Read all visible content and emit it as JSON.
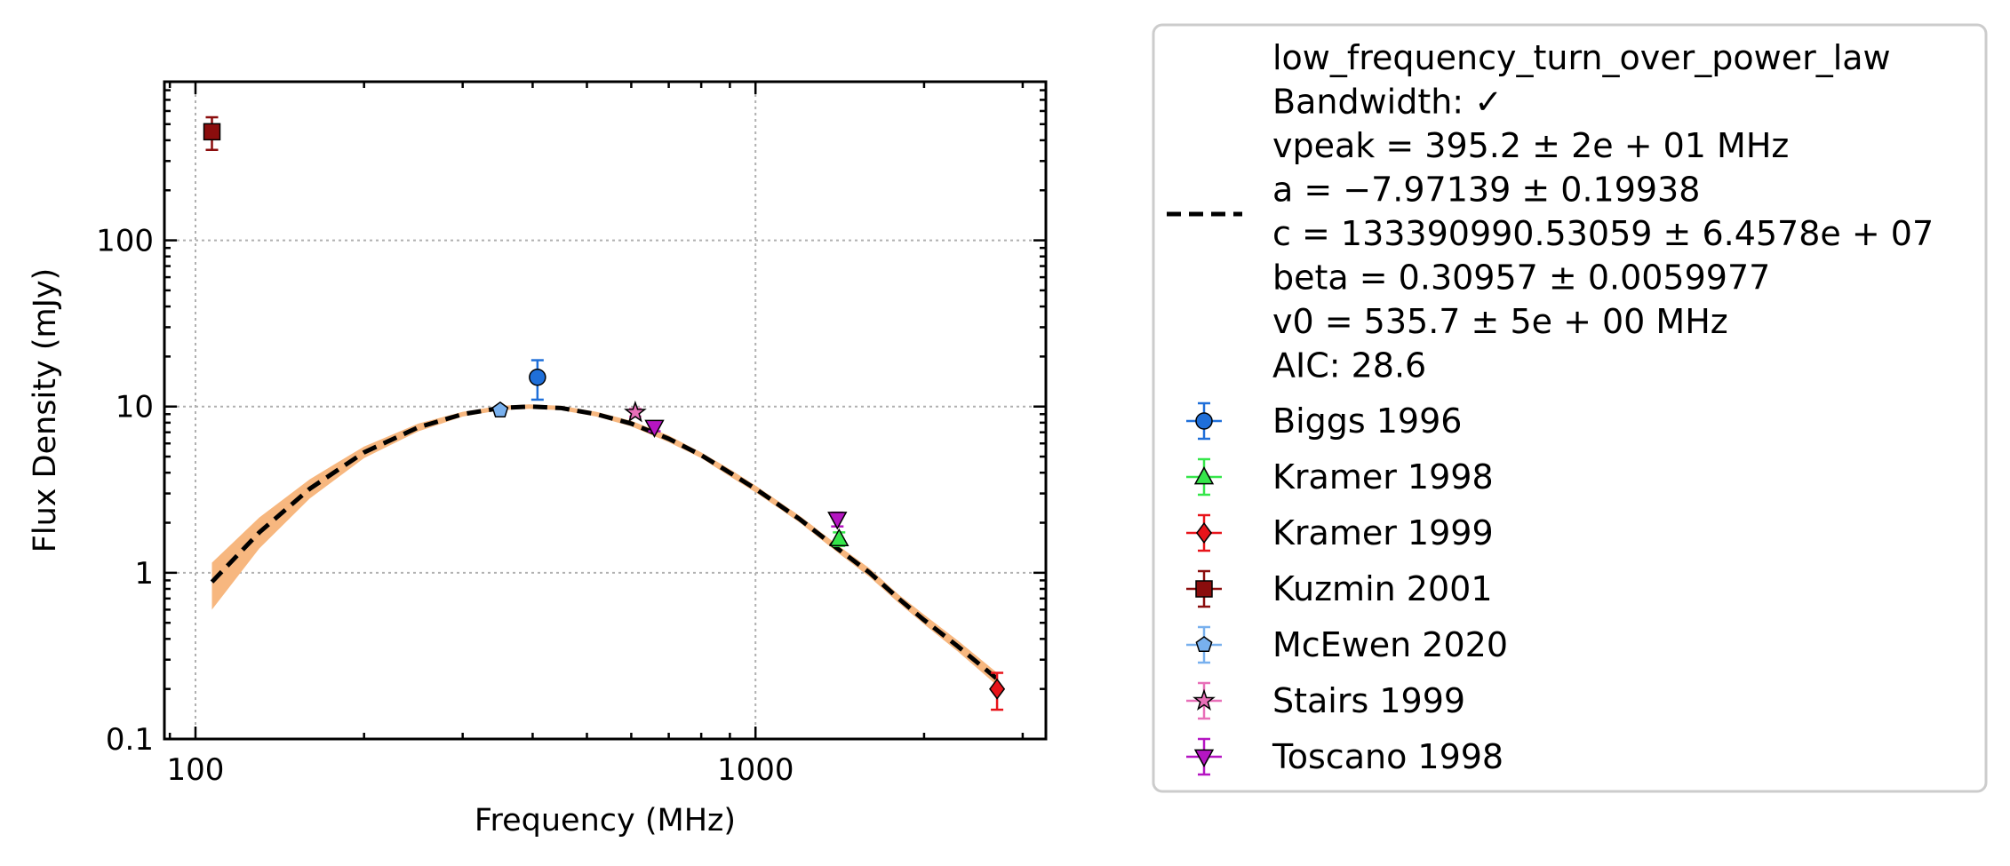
{
  "chart_data": {
    "type": "scatter",
    "xlabel": "Frequency (MHz)",
    "ylabel": "Flux Density (mJy)",
    "xscale": "log",
    "yscale": "log",
    "xlim": [
      88,
      3300
    ],
    "ylim": [
      0.1,
      900
    ],
    "xticks": [
      100,
      1000
    ],
    "xtick_labels": [
      "100",
      "1000"
    ],
    "yticks": [
      0.1,
      1,
      10,
      100
    ],
    "ytick_labels": [
      "0.1",
      "1",
      "10",
      "100"
    ],
    "grid": true,
    "legend_position": "outside-right",
    "fit": {
      "model": "low_frequency_turn_over_power_law",
      "lines": [
        "low_frequency_turn_over_power_law",
        "Bandwidth: ✓",
        "vpeak = 395.2 ± 2e + 01 MHz",
        "a = −7.97139 ± 0.19938",
        "c = 133390990.53059 ± 6.4578e + 07",
        "beta = 0.30957 ± 0.0059977",
        "v0 = 535.7 ± 5e + 00 MHz",
        "AIC: 28.6"
      ],
      "curve_x": [
        107,
        130,
        160,
        200,
        250,
        300,
        350,
        395,
        450,
        520,
        600,
        700,
        800,
        900,
        1000,
        1200,
        1400,
        1600,
        1800,
        2000,
        2300,
        2700
      ],
      "curve_y": [
        0.88,
        1.75,
        3.2,
        5.3,
        7.5,
        9.0,
        9.8,
        10.0,
        9.8,
        9.0,
        7.9,
        6.4,
        5.1,
        4.0,
        3.2,
        2.1,
        1.4,
        1.0,
        0.7,
        0.52,
        0.36,
        0.23
      ],
      "band_lower": [
        0.6,
        1.4,
        2.8,
        4.9,
        7.1,
        8.7,
        9.5,
        9.7,
        9.5,
        8.7,
        7.6,
        6.1,
        4.9,
        3.8,
        3.05,
        2.0,
        1.33,
        0.94,
        0.66,
        0.49,
        0.335,
        0.21
      ],
      "band_upper": [
        1.15,
        2.15,
        3.65,
        5.75,
        7.9,
        9.3,
        10.1,
        10.3,
        10.1,
        9.3,
        8.2,
        6.7,
        5.3,
        4.2,
        3.35,
        2.2,
        1.47,
        1.06,
        0.74,
        0.56,
        0.39,
        0.25
      ],
      "line_color": "#000000",
      "band_color": "#f7b77f"
    },
    "series": [
      {
        "name": "Biggs 1996",
        "marker": "circle",
        "color": "#1f6fd9",
        "points": [
          {
            "x": 408,
            "y": 15,
            "yerr_low": 4,
            "yerr_high": 4
          }
        ]
      },
      {
        "name": "Kramer 1998",
        "marker": "triangle-up",
        "color": "#35e64a",
        "points": [
          {
            "x": 1410,
            "y": 1.6,
            "yerr_low": 0.15,
            "yerr_high": 0.15
          }
        ]
      },
      {
        "name": "Kramer 1999",
        "marker": "diamond",
        "color": "#e8141a",
        "points": [
          {
            "x": 2700,
            "y": 0.2,
            "yerr_low": 0.05,
            "yerr_high": 0.05
          }
        ]
      },
      {
        "name": "Kuzmin 2001",
        "marker": "square",
        "color": "#8b0d0d",
        "points": [
          {
            "x": 107,
            "y": 450,
            "yerr_low": 100,
            "yerr_high": 100
          }
        ]
      },
      {
        "name": "McEwen 2020",
        "marker": "pentagon",
        "color": "#78b0ee",
        "points": [
          {
            "x": 350,
            "y": 9.5,
            "yerr_low": 0.5,
            "yerr_high": 0.5
          }
        ]
      },
      {
        "name": "Stairs 1999",
        "marker": "star",
        "color": "#e86fb8",
        "points": [
          {
            "x": 610,
            "y": 9.2,
            "yerr_low": 0.5,
            "yerr_high": 0.5
          }
        ]
      },
      {
        "name": "Toscano 1998",
        "marker": "triangle-down",
        "color": "#b515c2",
        "points": [
          {
            "x": 660,
            "y": 7.5,
            "yerr_low": 0.4,
            "yerr_high": 0.4
          },
          {
            "x": 1400,
            "y": 2.1,
            "yerr_low": 0.2,
            "yerr_high": 0.2
          }
        ]
      }
    ]
  }
}
